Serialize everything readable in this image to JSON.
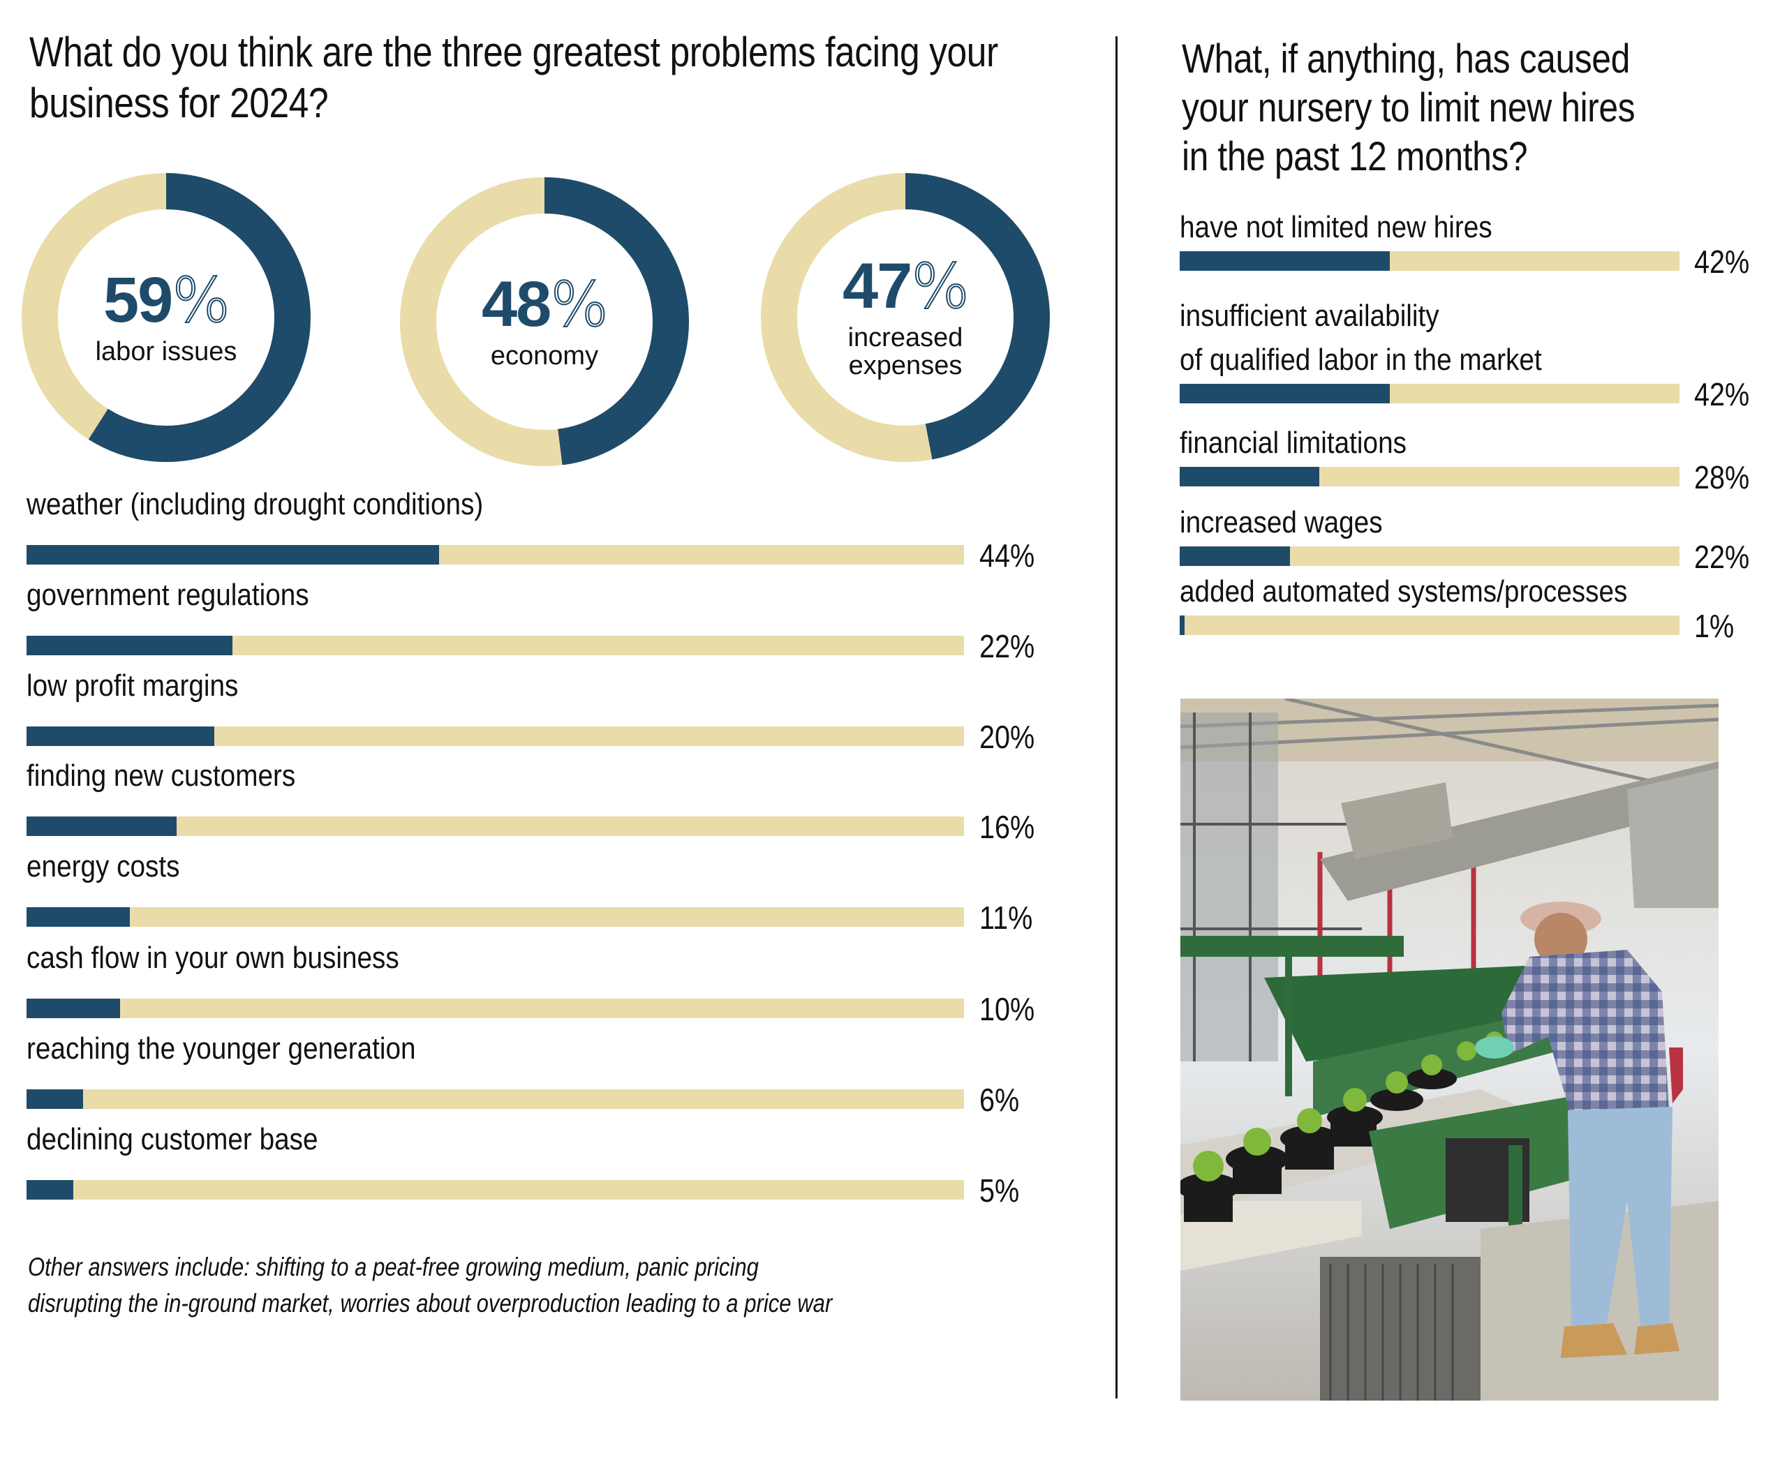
{
  "colors": {
    "accent": "#1f4b6a",
    "track": "#e9dca8",
    "text": "#111111",
    "divider": "#1a1a1a"
  },
  "left_panel": {
    "title_line1": "What do you think are the three greatest problems facing your",
    "title_line2": "business for 2024?",
    "footnote_line1": "Other answers include: shifting to a peat-free growing medium, panic pricing",
    "footnote_line2": "disrupting the in-ground market, worries about overproduction leading to a price war"
  },
  "right_panel": {
    "title_line1": "What, if anything, has caused",
    "title_line2": "your nursery to limit new hires",
    "title_line3": "in the past 12 months?",
    "photo": {
      "icon": "photo-icon",
      "alt": "Worker in plaid shirt and cap tending potted seedlings on a greenhouse conveyor line"
    }
  },
  "chart_data": [
    {
      "type": "pie",
      "subtype": "donut",
      "title": "What do you think are the three greatest problems facing your business for 2024? (top 3)",
      "categories": [
        "labor issues",
        "economy",
        "increased expenses"
      ],
      "values": [
        59,
        48,
        47
      ],
      "display": [
        "59",
        "48",
        "47"
      ],
      "unit": "%",
      "max": 100,
      "series_colors": {
        "filled": "#1f4b6a",
        "remaining": "#e9dca8"
      },
      "label_lines": [
        [
          "labor issues"
        ],
        [
          "economy"
        ],
        [
          "increased",
          "expenses"
        ]
      ]
    },
    {
      "type": "bar",
      "orientation": "horizontal",
      "title": "What do you think are the three greatest problems facing your business for 2024? (continued)",
      "categories": [
        "weather (including drought conditions)",
        "government regulations",
        "low profit margins",
        "finding new customers",
        "energy costs",
        "cash flow in your own business",
        "reaching the younger generation",
        "declining customer base"
      ],
      "values": [
        44,
        22,
        20,
        16,
        11,
        10,
        6,
        5
      ],
      "value_labels": [
        "44%",
        "22%",
        "20%",
        "16%",
        "11%",
        "10%",
        "6%",
        "5%"
      ],
      "xlim": [
        0,
        100
      ],
      "xlabel": "",
      "ylabel": "",
      "grid": false,
      "legend": "none"
    },
    {
      "type": "bar",
      "orientation": "horizontal",
      "title": "What, if anything, has caused your nursery to limit new hires in the past 12 months?",
      "categories": [
        "have not limited new hires",
        "insufficient availability of qualified labor in the market",
        "financial limitations",
        "increased wages",
        "added automated systems/processes"
      ],
      "label_lines": [
        [
          "have not limited new hires"
        ],
        [
          "insufficient availability",
          "of qualified labor in the market"
        ],
        [
          "financial limitations"
        ],
        [
          "increased wages"
        ],
        [
          "added automated systems/processes"
        ]
      ],
      "values": [
        42,
        42,
        28,
        22,
        1
      ],
      "value_labels": [
        "42%",
        "42%",
        "28%",
        "22%",
        "1%"
      ],
      "xlim": [
        0,
        100
      ],
      "xlabel": "",
      "ylabel": "",
      "grid": false,
      "legend": "none"
    }
  ]
}
